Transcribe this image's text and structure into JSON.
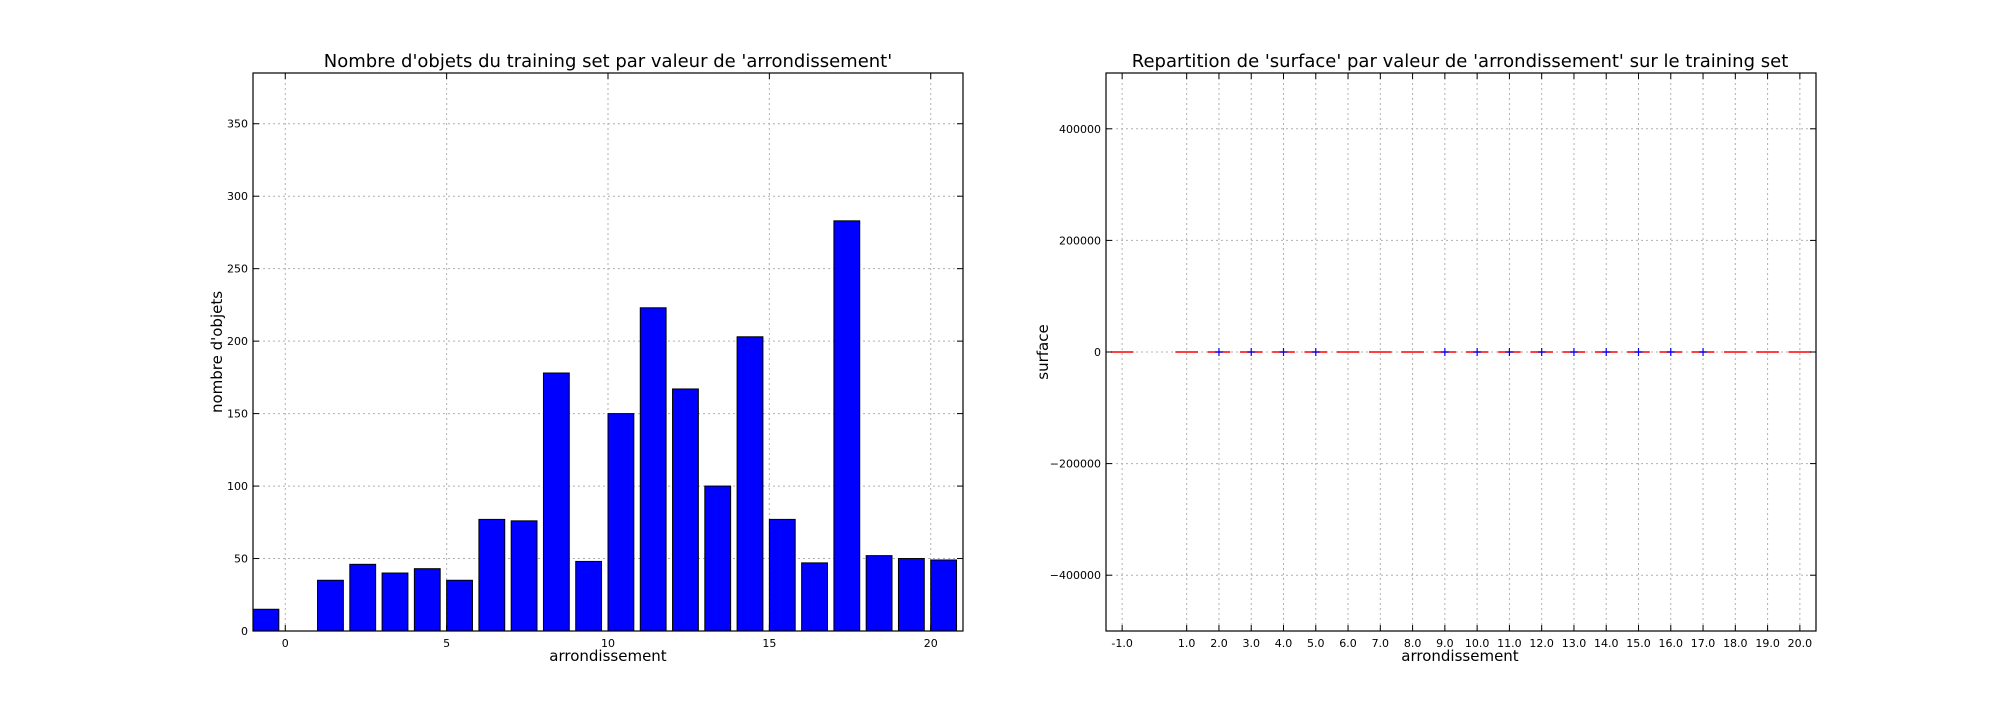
{
  "chart_data": [
    {
      "type": "bar",
      "title": "Nombre d'objets du training set par valeur de 'arrondissement'",
      "xlabel": "arrondissement",
      "ylabel": "nombre d'objets",
      "x": [
        -1,
        1,
        2,
        3,
        4,
        5,
        6,
        7,
        8,
        9,
        10,
        11,
        12,
        13,
        14,
        15,
        16,
        17,
        18,
        19,
        20
      ],
      "values": [
        15,
        35,
        46,
        40,
        43,
        35,
        77,
        76,
        178,
        48,
        150,
        223,
        167,
        100,
        203,
        77,
        47,
        283,
        52,
        50,
        49
      ],
      "xlim": [
        -1,
        21
      ],
      "ylim": [
        0,
        385
      ],
      "xticks": [
        "0",
        "5",
        "10",
        "15",
        "20"
      ],
      "yticks": [
        "0",
        "50",
        "100",
        "150",
        "200",
        "250",
        "300",
        "350"
      ],
      "grid": true,
      "bar_color": "#0000ff"
    },
    {
      "type": "box",
      "title": "Repartition de 'surface' par valeur de 'arrondissement' sur le training set",
      "xlabel": "arrondissement",
      "ylabel": "surface",
      "categories": [
        "-1.0",
        "1.0",
        "2.0",
        "3.0",
        "4.0",
        "5.0",
        "6.0",
        "7.0",
        "8.0",
        "9.0",
        "10.0",
        "11.0",
        "12.0",
        "13.0",
        "14.0",
        "15.0",
        "16.0",
        "17.0",
        "18.0",
        "19.0",
        "20.0"
      ],
      "x": [
        -1,
        1,
        2,
        3,
        4,
        5,
        6,
        7,
        8,
        9,
        10,
        11,
        12,
        13,
        14,
        15,
        16,
        17,
        18,
        19,
        20
      ],
      "median": [
        0,
        0,
        0,
        0,
        0,
        0,
        0,
        0,
        0,
        0,
        0,
        0,
        0,
        0,
        0,
        0,
        0,
        0,
        0,
        0,
        0
      ],
      "has_outlier_marker": [
        false,
        false,
        true,
        true,
        true,
        true,
        false,
        false,
        false,
        true,
        true,
        true,
        true,
        true,
        true,
        true,
        true,
        true,
        false,
        false,
        false
      ],
      "ylim": [
        -500000,
        500000
      ],
      "yticks": [
        "−400000",
        "−200000",
        "0",
        "200000",
        "400000"
      ],
      "grid": true,
      "median_color": "#ff0000",
      "marker_color": "#0000ff"
    }
  ]
}
